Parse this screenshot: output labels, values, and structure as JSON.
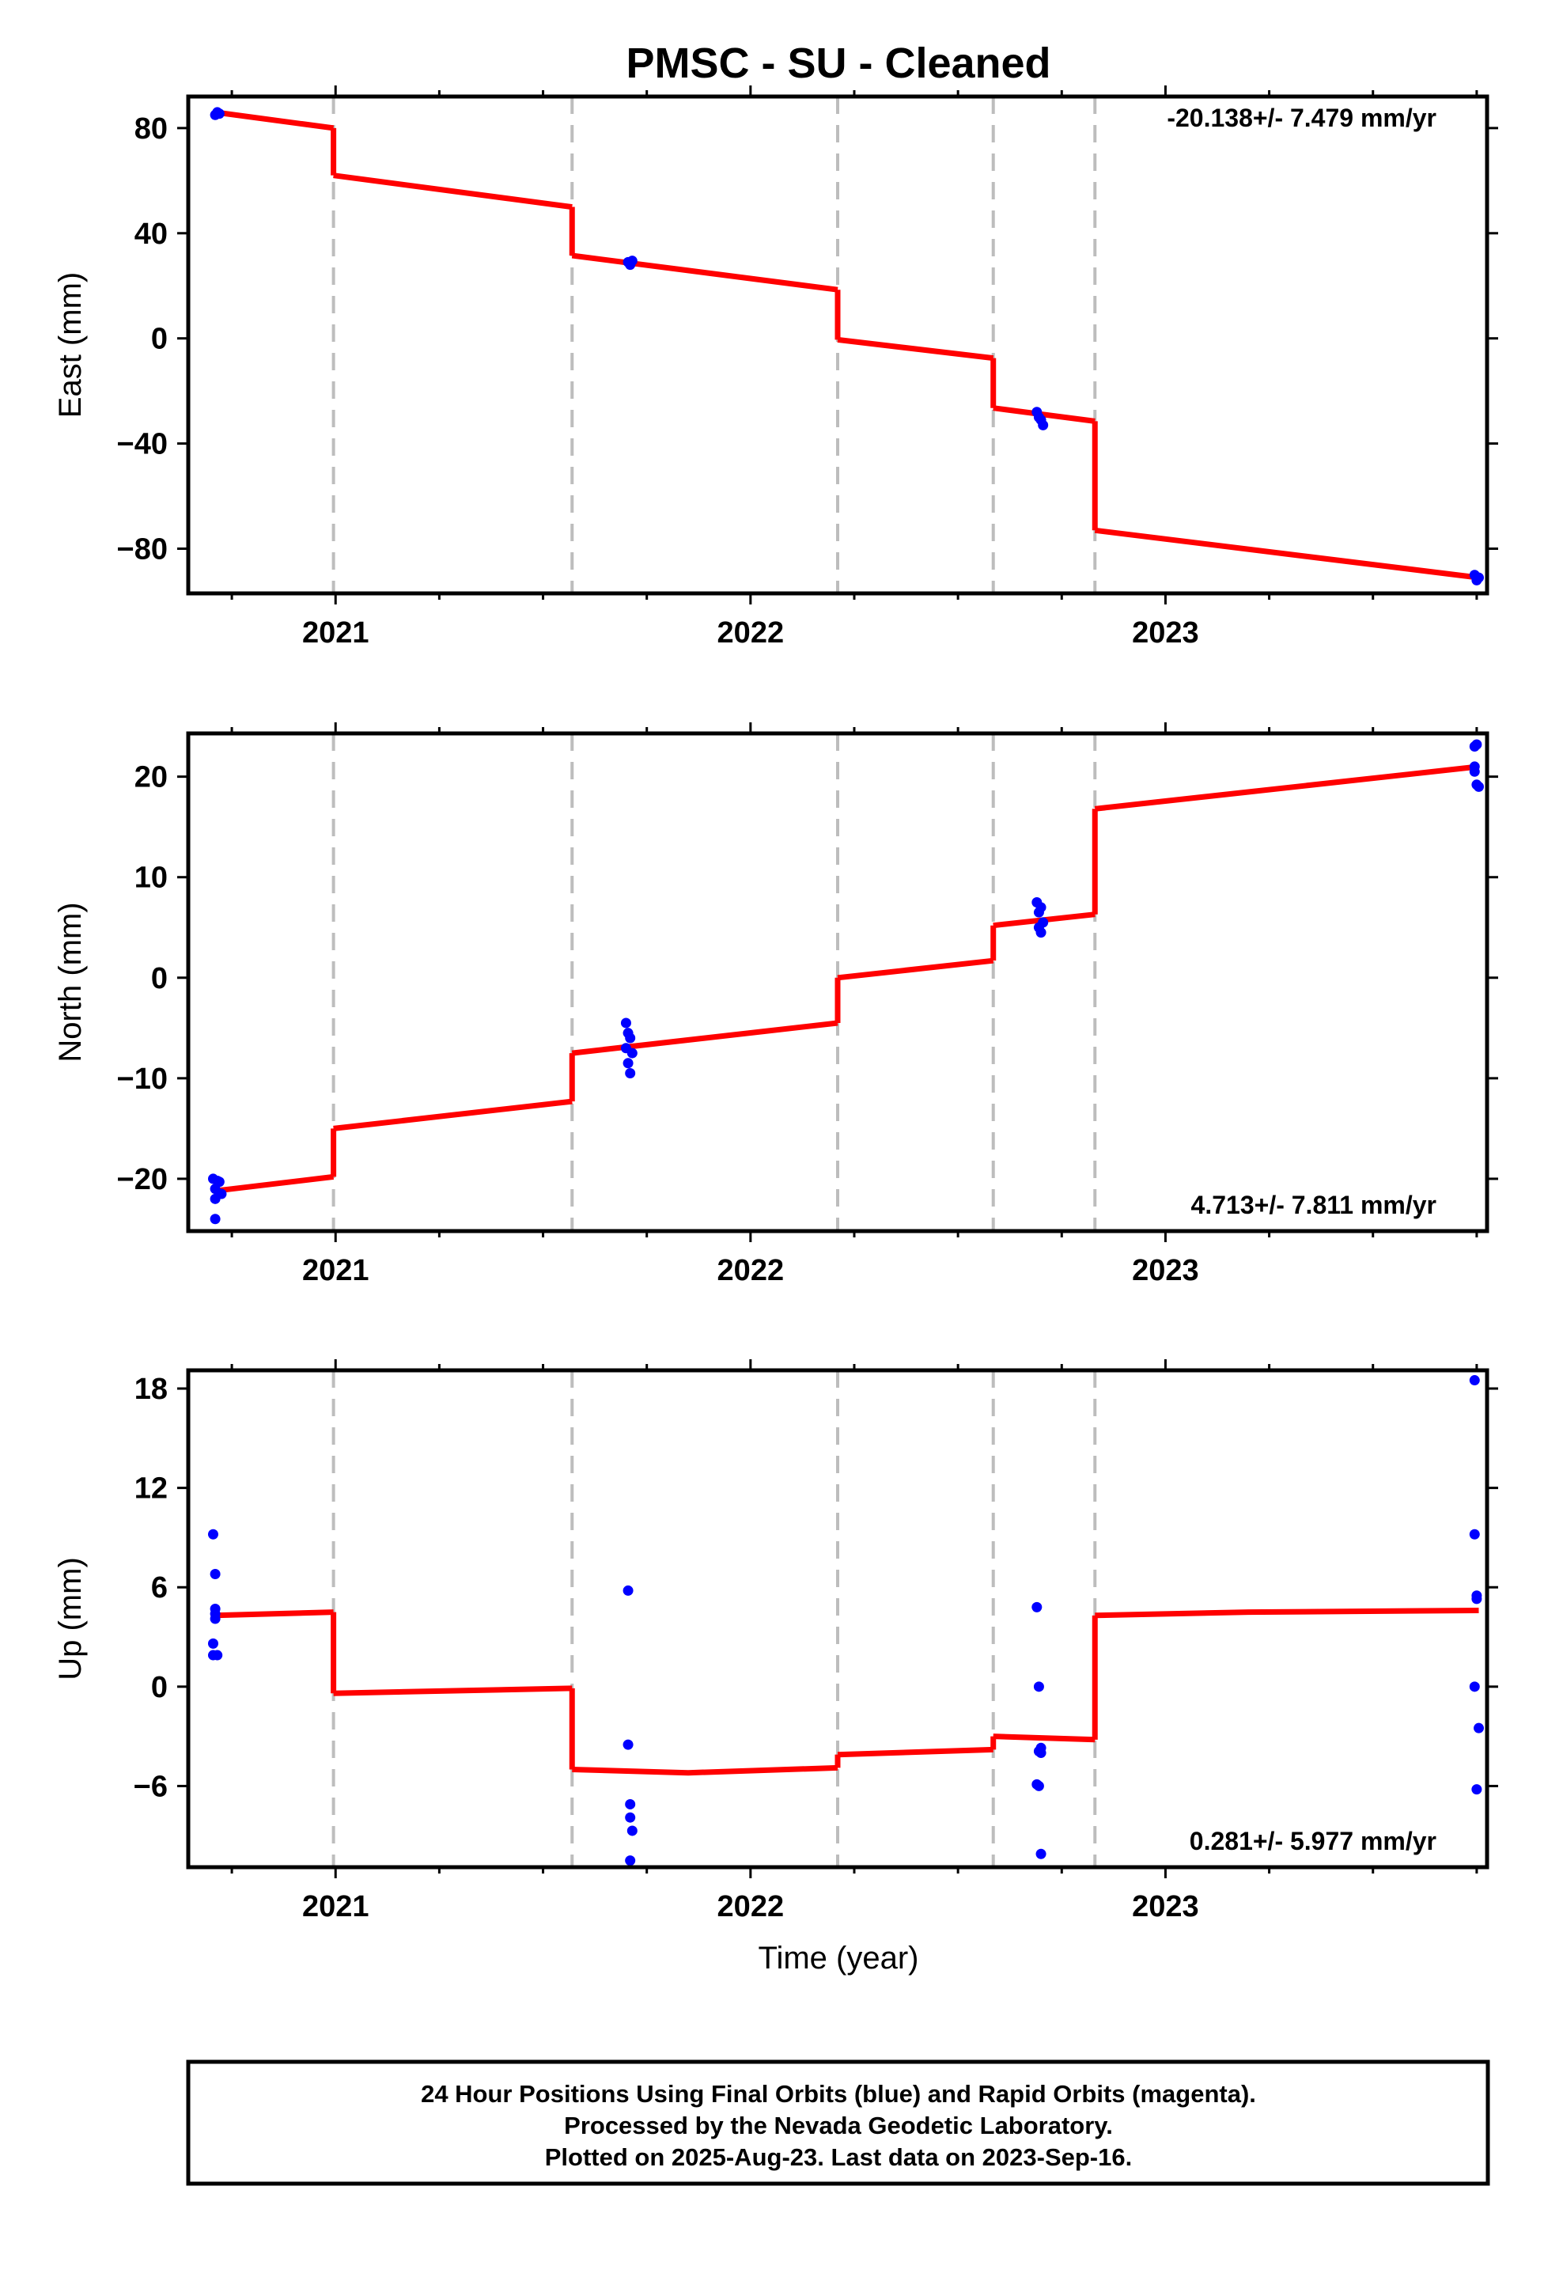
{
  "title": "PMSC  - SU - Cleaned",
  "xlabel": "Time (year)",
  "colors": {
    "fit": "#ff0000",
    "final_orbits": "#0000ff",
    "breaks": "#bdbdbd",
    "frame": "#000000"
  },
  "footer": {
    "line1": "24 Hour Positions Using Final Orbits (blue) and Rapid Orbits (magenta).",
    "line2": "Processed by the Nevada Geodetic Laboratory.",
    "line3": "Plotted on 2025-Aug-23. Last data on 2023-Sep-16."
  },
  "chart_data": [
    {
      "type": "scatter",
      "component": "East",
      "ylabel": "East (mm)",
      "rate_text": "-20.138+/- 7.479 mm/yr",
      "xlim": [
        2020.645,
        2023.775
      ],
      "ylim": [
        -97,
        92
      ],
      "yticks": [
        80,
        40,
        0,
        -40,
        -80
      ],
      "ytick_labels": [
        "80",
        "40",
        "0",
        "−40",
        "−80"
      ],
      "xticks": [
        2021,
        2022,
        2023
      ],
      "break_dates": [
        2020.995,
        2021.57,
        2022.21,
        2022.585,
        2022.83
      ],
      "points": {
        "x": [
          2020.71,
          2020.715,
          2020.72,
          2021.705,
          2021.71,
          2021.715,
          2022.69,
          2022.695,
          2022.7,
          2022.705,
          2023.745,
          2023.75,
          2023.755
        ],
        "y": [
          85,
          86,
          85.5,
          29,
          28,
          29.5,
          -28,
          -30,
          -31,
          -33,
          -90,
          -92,
          -91
        ]
      },
      "model_segments": [
        {
          "x": [
            2020.71,
            2020.995
          ],
          "y": [
            86,
            80
          ]
        },
        {
          "x": [
            2020.995,
            2021.57
          ],
          "y": [
            62,
            50
          ]
        },
        {
          "x": [
            2021.57,
            2022.21
          ],
          "y": [
            31.5,
            18.5
          ]
        },
        {
          "x": [
            2022.21,
            2022.585
          ],
          "y": [
            -0.5,
            -7.5
          ]
        },
        {
          "x": [
            2022.585,
            2022.83
          ],
          "y": [
            -26.5,
            -31.5
          ]
        },
        {
          "x": [
            2022.83,
            2023.755
          ],
          "y": [
            -73,
            -91
          ]
        }
      ]
    },
    {
      "type": "scatter",
      "component": "North",
      "ylabel": "North (mm)",
      "rate_text": "4.713+/- 7.811 mm/yr",
      "xlim": [
        2020.645,
        2023.775
      ],
      "ylim": [
        -25.2,
        24.3
      ],
      "yticks": [
        20,
        10,
        0,
        -10,
        -20
      ],
      "ytick_labels": [
        "20",
        "10",
        "0",
        "−10",
        "−20"
      ],
      "xticks": [
        2021,
        2022,
        2023
      ],
      "break_dates": [
        2020.995,
        2021.57,
        2022.21,
        2022.585,
        2022.83
      ],
      "points": {
        "x": [
          2020.705,
          2020.71,
          2020.715,
          2020.72,
          2020.725,
          2020.71,
          2020.71,
          2021.7,
          2021.705,
          2021.71,
          2021.715,
          2021.7,
          2021.705,
          2021.71,
          2022.69,
          2022.695,
          2022.7,
          2022.705,
          2022.695,
          2022.7,
          2023.745,
          2023.75,
          2023.745,
          2023.75,
          2023.755,
          2023.745
        ],
        "y": [
          -20,
          -21,
          -20.2,
          -20.3,
          -21.5,
          -22,
          -24,
          -4.5,
          -5.5,
          -6,
          -7.5,
          -7,
          -8.5,
          -9.5,
          7.5,
          6.5,
          7,
          5.5,
          5,
          4.5,
          23,
          23.2,
          21,
          19.2,
          19,
          20.5
        ]
      },
      "model_segments": [
        {
          "x": [
            2020.71,
            2020.995
          ],
          "y": [
            -21.2,
            -19.8
          ]
        },
        {
          "x": [
            2020.995,
            2021.57
          ],
          "y": [
            -15,
            -12.3
          ]
        },
        {
          "x": [
            2021.57,
            2022.21
          ],
          "y": [
            -7.5,
            -4.5
          ]
        },
        {
          "x": [
            2022.21,
            2022.585
          ],
          "y": [
            0,
            1.7
          ]
        },
        {
          "x": [
            2022.585,
            2022.83
          ],
          "y": [
            5.2,
            6.3
          ]
        },
        {
          "x": [
            2022.83,
            2023.755
          ],
          "y": [
            16.8,
            21
          ]
        }
      ]
    },
    {
      "type": "scatter",
      "component": "Up",
      "ylabel": "Up (mm)",
      "rate_text": "0.281+/- 5.977 mm/yr",
      "xlim": [
        2020.645,
        2023.775
      ],
      "ylim": [
        -10.9,
        19.1
      ],
      "yticks": [
        18,
        12,
        6,
        0,
        -6
      ],
      "ytick_labels": [
        "18",
        "12",
        "6",
        "0",
        "−6"
      ],
      "xticks": [
        2021,
        2022,
        2023
      ],
      "break_dates": [
        2020.995,
        2021.57,
        2022.21,
        2022.585,
        2022.83
      ],
      "points": {
        "x": [
          2020.705,
          2020.71,
          2020.71,
          2020.71,
          2020.705,
          2020.705,
          2020.715,
          2020.71,
          2021.705,
          2021.705,
          2021.71,
          2021.71,
          2021.715,
          2021.71,
          2022.69,
          2022.695,
          2022.7,
          2022.695,
          2022.69,
          2022.695,
          2022.7,
          2022.7,
          2023.745,
          2023.745,
          2023.75,
          2023.75,
          2023.745,
          2023.755,
          2023.75
        ],
        "y": [
          9.2,
          6.8,
          4.7,
          4.1,
          2.6,
          1.9,
          1.9,
          4.4,
          5.8,
          -3.5,
          -7.1,
          -7.9,
          -8.7,
          -10.5,
          4.8,
          0,
          -3.7,
          -3.9,
          -5.9,
          -6.0,
          -10.1,
          -4.0,
          18.5,
          9.2,
          5.5,
          5.3,
          0,
          -2.5,
          -6.2
        ]
      },
      "model_segments": [
        {
          "x": [
            2020.71,
            2020.995
          ],
          "y": [
            4.3,
            4.5
          ]
        },
        {
          "x": [
            2020.995,
            2021.57
          ],
          "y": [
            -0.4,
            -0.1
          ]
        },
        {
          "x": [
            2021.57,
            2021.85,
            2022.21
          ],
          "y": [
            -5,
            -5.2,
            -4.9
          ]
        },
        {
          "x": [
            2022.21,
            2022.585
          ],
          "y": [
            -4.1,
            -3.8
          ]
        },
        {
          "x": [
            2022.585,
            2022.83
          ],
          "y": [
            -3,
            -3.2
          ]
        },
        {
          "x": [
            2022.83,
            2023.2,
            2023.755
          ],
          "y": [
            4.3,
            4.5,
            4.6
          ]
        }
      ]
    }
  ]
}
